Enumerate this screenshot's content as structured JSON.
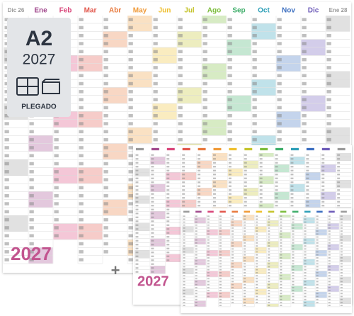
{
  "badge": {
    "size": "A2",
    "year": "2027",
    "fold": "PLEGADO"
  },
  "calendar": {
    "months": [
      "Dic 26",
      "Ene",
      "Feb",
      "Mar",
      "Abr",
      "May",
      "Jun",
      "Jul",
      "Ago",
      "Sep",
      "Oct",
      "Nov",
      "Dic",
      "Ene 28"
    ],
    "year": "2027"
  },
  "plus": "+",
  "small_poster": {
    "year": "2027"
  }
}
